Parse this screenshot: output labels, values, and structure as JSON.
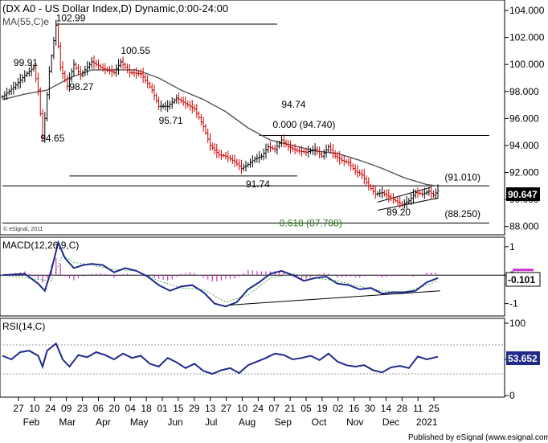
{
  "chart_data": [
    {
      "type": "candlestick",
      "title": "(DX A0 - US Dollar Index,D) Dynamic,0:00-24:00",
      "indicator_label": "MA(55,C)e",
      "copyright": "© eSignal, 2011",
      "ylim": [
        87.5,
        104.3
      ],
      "yticks": [
        88,
        90,
        92,
        94,
        96,
        98,
        100,
        102,
        104
      ],
      "ytick_labels": [
        "88.000",
        "90.000",
        "92.000",
        "94.000",
        "96.000",
        "98.000",
        "100.000",
        "102.000",
        "104.000"
      ],
      "current_price": "90.647",
      "annotations": [
        {
          "text": "102.99",
          "x": 24,
          "y": 103.2
        },
        {
          "text": "99.91",
          "x": 5,
          "y": 99.9
        },
        {
          "text": "98.27",
          "x": 30,
          "y": 98.1
        },
        {
          "text": "100.55",
          "x": 53,
          "y": 100.8
        },
        {
          "text": "94.65",
          "x": 17,
          "y": 94.3
        },
        {
          "text": "95.71",
          "x": 70,
          "y": 95.6
        },
        {
          "text": "94.74",
          "x": 125,
          "y": 96.8
        },
        {
          "text": "0.000 (94.740)",
          "x": 121,
          "y": 95.3
        },
        {
          "text": "91.74",
          "x": 109,
          "y": 90.9
        },
        {
          "text": "(91.010)",
          "x": 198,
          "y": 91.4
        },
        {
          "text": "89.20",
          "x": 172,
          "y": 88.8
        },
        {
          "text": "(88.250)",
          "x": 198,
          "y": 88.7
        },
        {
          "text": "0.618 (87.788)",
          "x": 124,
          "y": 88.0
        }
      ],
      "horizontal_levels": [
        {
          "y": 102.99,
          "x0": 24,
          "x1": 123
        },
        {
          "y": 94.74,
          "x0": 115,
          "x1": 218
        },
        {
          "y": 91.74,
          "x0": 30,
          "x1": 132
        },
        {
          "y": 91.01,
          "x0": 0,
          "x1": 218
        },
        {
          "y": 88.25,
          "x0": 0,
          "x1": 218
        }
      ],
      "trendlines": [
        {
          "x0": 168,
          "y0": 89.8,
          "x1": 192,
          "y1": 90.9
        },
        {
          "x0": 168,
          "y0": 89.2,
          "x1": 195,
          "y1": 90.1
        }
      ],
      "x_tick_labels": [
        "27",
        "10",
        "24",
        "09",
        "23",
        "06",
        "20",
        "04",
        "18",
        "01",
        "15",
        "29",
        "13",
        "27",
        "10",
        "24",
        "07",
        "21",
        "05",
        "19",
        "02",
        "16",
        "30",
        "14",
        "28",
        "11",
        "25"
      ],
      "x_month_labels": [
        "Feb",
        "Mar",
        "Apr",
        "May",
        "Jun",
        "Jul",
        "Aug",
        "Sep",
        "Oct",
        "Nov",
        "Dec",
        "2021"
      ],
      "x_index_range": [
        0,
        195
      ],
      "close_points": [
        [
          0,
          97.6
        ],
        [
          5,
          98.3
        ],
        [
          10,
          99.2
        ],
        [
          14,
          99.8
        ],
        [
          16,
          98.1
        ],
        [
          18,
          94.6
        ],
        [
          19,
          96.0
        ],
        [
          21,
          99.5
        ],
        [
          24,
          102.9
        ],
        [
          26,
          99.8
        ],
        [
          29,
          98.4
        ],
        [
          32,
          100.0
        ],
        [
          35,
          99.2
        ],
        [
          40,
          100.2
        ],
        [
          45,
          99.7
        ],
        [
          50,
          99.4
        ],
        [
          53,
          100.2
        ],
        [
          57,
          99.4
        ],
        [
          62,
          99.3
        ],
        [
          67,
          98.1
        ],
        [
          70,
          96.9
        ],
        [
          74,
          96.9
        ],
        [
          78,
          97.5
        ],
        [
          82,
          97.1
        ],
        [
          86,
          96.7
        ],
        [
          90,
          95.4
        ],
        [
          93,
          94.0
        ],
        [
          97,
          93.3
        ],
        [
          100,
          93.2
        ],
        [
          104,
          92.8
        ],
        [
          107,
          92.3
        ],
        [
          110,
          92.6
        ],
        [
          113,
          93.0
        ],
        [
          116,
          93.2
        ],
        [
          119,
          93.9
        ],
        [
          122,
          93.7
        ],
        [
          125,
          94.4
        ],
        [
          128,
          93.9
        ],
        [
          132,
          93.6
        ],
        [
          136,
          93.5
        ],
        [
          140,
          93.7
        ],
        [
          143,
          93.2
        ],
        [
          146,
          93.9
        ],
        [
          149,
          93.2
        ],
        [
          152,
          92.9
        ],
        [
          155,
          92.7
        ],
        [
          158,
          92.1
        ],
        [
          161,
          91.8
        ],
        [
          164,
          91.0
        ],
        [
          167,
          90.4
        ],
        [
          170,
          90.5
        ],
        [
          173,
          90.2
        ],
        [
          176,
          89.9
        ],
        [
          179,
          89.6
        ],
        [
          182,
          89.9
        ],
        [
          185,
          90.5
        ],
        [
          188,
          90.4
        ],
        [
          191,
          90.6
        ],
        [
          193,
          90.3
        ],
        [
          195,
          90.65
        ]
      ],
      "ma55_points": [
        [
          0,
          97.4
        ],
        [
          10,
          97.8
        ],
        [
          20,
          98.1
        ],
        [
          30,
          99.0
        ],
        [
          40,
          99.6
        ],
        [
          50,
          99.6
        ],
        [
          60,
          99.6
        ],
        [
          70,
          99.0
        ],
        [
          80,
          98.1
        ],
        [
          90,
          97.4
        ],
        [
          100,
          96.5
        ],
        [
          110,
          95.3
        ],
        [
          120,
          94.4
        ],
        [
          130,
          94.0
        ],
        [
          140,
          93.6
        ],
        [
          150,
          93.4
        ],
        [
          160,
          92.9
        ],
        [
          170,
          92.3
        ],
        [
          180,
          91.6
        ],
        [
          190,
          91.1
        ],
        [
          195,
          91.0
        ]
      ],
      "price_scale_label": "90.647"
    },
    {
      "type": "line",
      "title": "MACD(12,26,9,C)",
      "ylim": [
        -1.35,
        1.25
      ],
      "ytick_labels": [
        "1",
        "0",
        "-1"
      ],
      "yticks": [
        1,
        0,
        -1
      ],
      "current_value": "-0.101",
      "macd_points": [
        [
          0,
          0.0
        ],
        [
          10,
          0.05
        ],
        [
          16,
          -0.3
        ],
        [
          19,
          -0.55
        ],
        [
          22,
          0.2
        ],
        [
          25,
          1.15
        ],
        [
          28,
          0.6
        ],
        [
          32,
          0.25
        ],
        [
          36,
          0.35
        ],
        [
          40,
          0.4
        ],
        [
          45,
          0.35
        ],
        [
          50,
          0.1
        ],
        [
          55,
          0.25
        ],
        [
          60,
          0.15
        ],
        [
          65,
          -0.05
        ],
        [
          70,
          -0.35
        ],
        [
          75,
          -0.55
        ],
        [
          80,
          -0.4
        ],
        [
          85,
          -0.35
        ],
        [
          90,
          -0.6
        ],
        [
          95,
          -1.0
        ],
        [
          100,
          -1.1
        ],
        [
          105,
          -0.95
        ],
        [
          110,
          -0.5
        ],
        [
          115,
          -0.25
        ],
        [
          120,
          0.05
        ],
        [
          125,
          0.15
        ],
        [
          130,
          0.0
        ],
        [
          135,
          -0.2
        ],
        [
          140,
          -0.1
        ],
        [
          145,
          -0.05
        ],
        [
          150,
          -0.3
        ],
        [
          155,
          -0.35
        ],
        [
          160,
          -0.5
        ],
        [
          165,
          -0.45
        ],
        [
          170,
          -0.65
        ],
        [
          175,
          -0.6
        ],
        [
          180,
          -0.6
        ],
        [
          185,
          -0.55
        ],
        [
          190,
          -0.25
        ],
        [
          195,
          -0.1
        ]
      ],
      "signal_points": [
        [
          0,
          0.0
        ],
        [
          16,
          -0.15
        ],
        [
          22,
          -0.2
        ],
        [
          27,
          0.7
        ],
        [
          32,
          0.45
        ],
        [
          40,
          0.35
        ],
        [
          50,
          0.2
        ],
        [
          60,
          0.15
        ],
        [
          70,
          -0.2
        ],
        [
          80,
          -0.45
        ],
        [
          90,
          -0.5
        ],
        [
          100,
          -0.95
        ],
        [
          110,
          -0.7
        ],
        [
          120,
          -0.1
        ],
        [
          130,
          0.05
        ],
        [
          140,
          -0.1
        ],
        [
          150,
          -0.2
        ],
        [
          160,
          -0.4
        ],
        [
          170,
          -0.55
        ],
        [
          180,
          -0.6
        ],
        [
          190,
          -0.35
        ],
        [
          195,
          -0.2
        ]
      ],
      "trendline": {
        "x0": 102,
        "y0": -1.05,
        "x1": 196,
        "y1": -0.55
      }
    },
    {
      "type": "line",
      "title": "RSI(14,C)",
      "ylim": [
        0,
        100
      ],
      "ytick_labels": [
        "100",
        "50",
        "0"
      ],
      "yticks": [
        100,
        50,
        0
      ],
      "current_value": "53.652",
      "rsi_points": [
        [
          0,
          55
        ],
        [
          4,
          50
        ],
        [
          8,
          60
        ],
        [
          12,
          62
        ],
        [
          16,
          55
        ],
        [
          18,
          40
        ],
        [
          20,
          62
        ],
        [
          24,
          72
        ],
        [
          27,
          50
        ],
        [
          30,
          40
        ],
        [
          34,
          56
        ],
        [
          38,
          53
        ],
        [
          42,
          60
        ],
        [
          46,
          56
        ],
        [
          50,
          50
        ],
        [
          54,
          58
        ],
        [
          58,
          52
        ],
        [
          62,
          55
        ],
        [
          66,
          44
        ],
        [
          70,
          40
        ],
        [
          74,
          52
        ],
        [
          78,
          46
        ],
        [
          82,
          38
        ],
        [
          86,
          44
        ],
        [
          90,
          34
        ],
        [
          94,
          30
        ],
        [
          98,
          35
        ],
        [
          102,
          38
        ],
        [
          106,
          31
        ],
        [
          110,
          42
        ],
        [
          114,
          47
        ],
        [
          118,
          52
        ],
        [
          122,
          58
        ],
        [
          126,
          56
        ],
        [
          130,
          50
        ],
        [
          134,
          52
        ],
        [
          138,
          55
        ],
        [
          142,
          49
        ],
        [
          146,
          58
        ],
        [
          150,
          47
        ],
        [
          154,
          42
        ],
        [
          158,
          40
        ],
        [
          162,
          42
        ],
        [
          166,
          35
        ],
        [
          170,
          32
        ],
        [
          174,
          39
        ],
        [
          178,
          41
        ],
        [
          182,
          38
        ],
        [
          186,
          54
        ],
        [
          190,
          50
        ],
        [
          195,
          53.7
        ]
      ]
    }
  ],
  "footer": "Published by eSignal (www.esignal.com)"
}
